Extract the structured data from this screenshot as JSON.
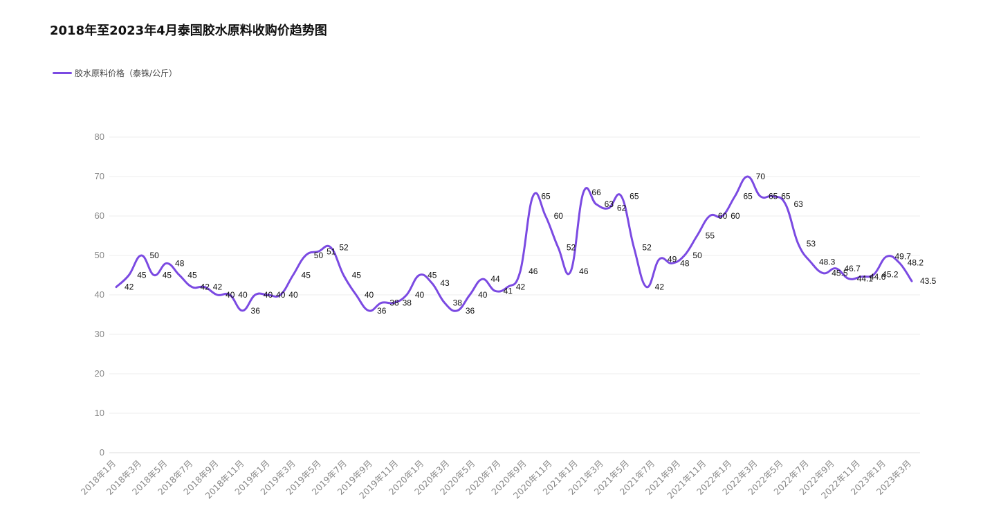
{
  "chart_data": {
    "type": "line",
    "title": "2018年至2023年4月泰国胶水原料收购价趋势图",
    "colors": {
      "series": "#7b4ae2",
      "grid": "#eeeeee",
      "axis_text": "#888888"
    },
    "legend": {
      "position": "top-left"
    },
    "grid": true,
    "ylim": [
      0,
      80
    ],
    "yticks": [
      0,
      10,
      20,
      30,
      40,
      50,
      60,
      70,
      80
    ],
    "xtick_labels": [
      "2018年1月",
      "2018年3月",
      "2018年5月",
      "2018年7月",
      "2018年9月",
      "2018年11月",
      "2019年1月",
      "2019年3月",
      "2019年5月",
      "2019年7月",
      "2019年9月",
      "2019年11月",
      "2020年1月",
      "2020年3月",
      "2020年5月",
      "2020年7月",
      "2020年9月",
      "2020年11月",
      "2021年1月",
      "2021年3月",
      "2021年5月",
      "2021年7月",
      "2021年9月",
      "2021年11月",
      "2022年1月",
      "2022年3月",
      "2022年5月",
      "2022年7月",
      "2022年9月",
      "2022年11月",
      "2023年1月",
      "2023年3月"
    ],
    "series": [
      {
        "name": "胶水原料价格（泰铢/公斤）",
        "values": [
          42,
          45,
          50,
          45,
          48,
          45,
          42,
          42,
          40,
          40,
          36,
          40,
          40,
          40,
          45,
          50,
          51,
          52,
          45,
          40,
          36,
          38,
          38,
          40,
          45,
          43,
          38,
          36,
          40,
          44,
          41,
          42,
          46,
          65,
          60,
          52,
          46,
          66,
          63,
          62,
          65,
          52,
          42,
          49,
          48,
          50,
          55,
          60,
          60,
          65,
          70,
          65,
          65,
          63,
          53,
          48.3,
          45.5,
          46.7,
          44.1,
          44.6,
          45.2,
          49.7,
          48.2,
          43.5
        ],
        "labels": [
          "42",
          "45",
          "50",
          "45",
          "48",
          "45",
          "42",
          "42",
          "40",
          "40",
          "36",
          "40",
          "40",
          "40",
          "45",
          "50",
          "51",
          "52",
          "45",
          "40",
          "36",
          "38",
          "38",
          "40",
          "45",
          "43",
          "38",
          "36",
          "40",
          "44",
          "41",
          "42",
          "46",
          "65",
          "60",
          "52",
          "46",
          "66",
          "63",
          "62",
          "65",
          "52",
          "42",
          "49",
          "48",
          "50",
          "55",
          "60",
          "60",
          "65",
          "70",
          "65",
          "65",
          "63",
          "53",
          "48.3",
          "45.5",
          "46.7",
          "44.1",
          "44.6",
          "45.2",
          "49.7",
          "48.2",
          "43.5"
        ]
      }
    ]
  }
}
